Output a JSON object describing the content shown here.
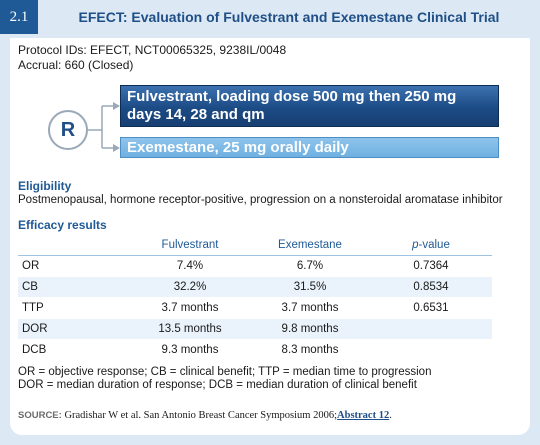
{
  "figure": {
    "number": "2.1",
    "title": "EFECT: Evaluation of Fulvestrant and Exemestane Clinical Trial"
  },
  "protocol": {
    "ids": "Protocol IDs: EFECT, NCT00065325, 9238IL/0048",
    "accrual": "Accrual: 660 (Closed)"
  },
  "randomization": {
    "symbol": "R",
    "arms": [
      {
        "line1": "Fulvestrant, loading dose 500 mg then 250 mg",
        "line2": "days 14, 28 and qm",
        "color": "#1c4b85"
      },
      {
        "line1": "Exemestane, 25 mg orally daily",
        "color": "#6fb0e1"
      }
    ]
  },
  "eligibility": {
    "heading": "Eligibility",
    "text": "Postmenopausal, hormone receptor-positive, progression on a nonsteroidal aromatase inhibitor"
  },
  "efficacy": {
    "heading": "Efficacy results",
    "columns": [
      "",
      "Fulvestrant",
      "Exemestane",
      "p",
      "-value"
    ],
    "rows": [
      {
        "label": "OR",
        "fulvestrant": "7.4%",
        "exemestane": "6.7%",
        "p": "0.7364"
      },
      {
        "label": "CB",
        "fulvestrant": "32.2%",
        "exemestane": "31.5%",
        "p": "0.8534"
      },
      {
        "label": "TTP",
        "fulvestrant": "3.7 months",
        "exemestane": "3.7 months",
        "p": "0.6531"
      },
      {
        "label": "DOR",
        "fulvestrant": "13.5 months",
        "exemestane": "9.8 months",
        "p": ""
      },
      {
        "label": "DCB",
        "fulvestrant": "9.3 months",
        "exemestane": "8.3 months",
        "p": ""
      }
    ]
  },
  "notes": {
    "line1": "OR = objective response; CB = clinical benefit; TTP = median time to progression",
    "line2": "DOR = median duration of response; DCB = median duration of clinical benefit"
  },
  "source": {
    "label": "SOURCE:",
    "text": "Gradishar W et al. San Antonio Breast Cancer Symposium 2006;",
    "link": "Abstract 12",
    "end": "."
  },
  "colors": {
    "accent": "#1f5a96",
    "frame": "#dce9f5"
  }
}
